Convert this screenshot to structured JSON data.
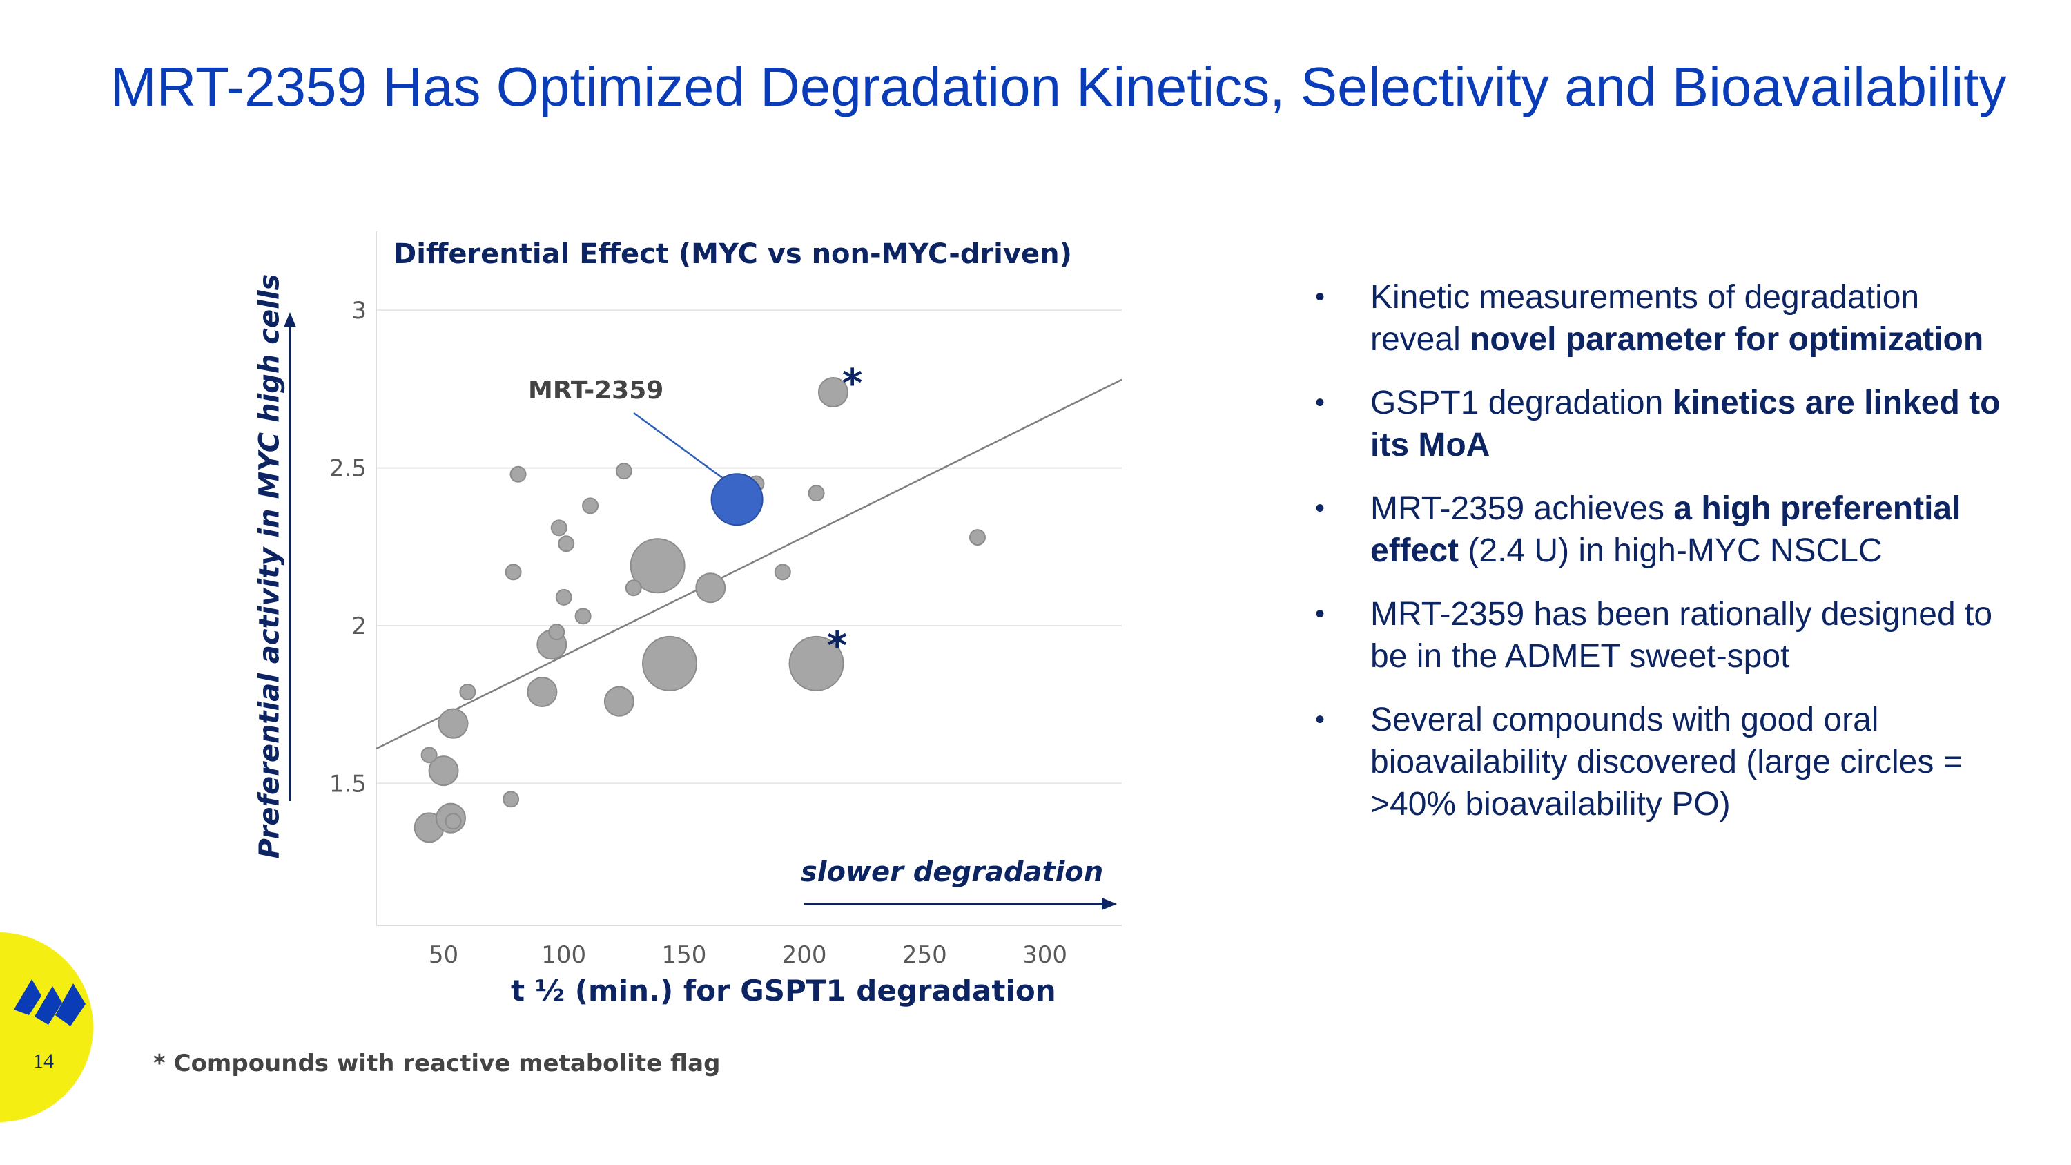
{
  "slide": {
    "title": "MRT-2359 Has Optimized Degradation Kinetics, Selectivity and Bioavailability",
    "page_number": "14",
    "footnote": "* Compounds with reactive metabolite flag",
    "colors": {
      "title": "#0a3cb8",
      "navy": "#0d2463",
      "highlight": "#3a66c8",
      "bubble": "#a6a6a6",
      "logo_bg": "#f5ee12"
    }
  },
  "bullets": [
    {
      "parts": [
        {
          "text": "Kinetic measurements of degradation reveal ",
          "bold": false
        },
        {
          "text": "novel parameter for optimization",
          "bold": true
        }
      ]
    },
    {
      "parts": [
        {
          "text": "GSPT1 degradation ",
          "bold": false
        },
        {
          "text": "kinetics are linked to its MoA",
          "bold": true
        }
      ]
    },
    {
      "parts": [
        {
          "text": "MRT-2359 achieves ",
          "bold": false
        },
        {
          "text": "a high preferential effect",
          "bold": true
        },
        {
          "text": " (2.4 U) in high-MYC NSCLC",
          "bold": false
        }
      ]
    },
    {
      "parts": [
        {
          "text": "MRT-2359 has been rationally designed to be in the ADMET sweet-spot",
          "bold": false
        }
      ]
    },
    {
      "parts": [
        {
          "text": "Several compounds with good oral bioavailability discovered (large circles = >40% bioavailability PO)",
          "bold": false
        }
      ]
    }
  ],
  "chart_data": {
    "type": "scatter",
    "title": "Differential Effect (MYC vs non-MYC-driven)",
    "xlabel": "t ½ (min.) for GSPT1 degradation",
    "ylabel": "Preferential activity in MYC high cells",
    "xlim": [
      22,
      332
    ],
    "ylim": [
      1.05,
      3.25
    ],
    "xticks": [
      50,
      100,
      150,
      200,
      250,
      300
    ],
    "yticks": [
      1.5,
      2,
      2.5,
      3
    ],
    "grid": true,
    "direction_label": "slower degradation",
    "highlight": {
      "name": "MRT-2359",
      "x": 172,
      "y": 2.4,
      "size": "large"
    },
    "flag_marker": "*",
    "trendline": {
      "x1": 22,
      "y1": 1.61,
      "x2": 332,
      "y2": 2.78
    },
    "points": [
      {
        "x": 44,
        "y": 1.59,
        "size": "small"
      },
      {
        "x": 44,
        "y": 1.36,
        "size": "medium"
      },
      {
        "x": 50,
        "y": 1.54,
        "size": "medium"
      },
      {
        "x": 54,
        "y": 1.69,
        "size": "medium"
      },
      {
        "x": 53,
        "y": 1.39,
        "size": "medium"
      },
      {
        "x": 54,
        "y": 1.38,
        "size": "small"
      },
      {
        "x": 60,
        "y": 1.79,
        "size": "small"
      },
      {
        "x": 78,
        "y": 1.45,
        "size": "small"
      },
      {
        "x": 79,
        "y": 2.17,
        "size": "small"
      },
      {
        "x": 81,
        "y": 2.48,
        "size": "small"
      },
      {
        "x": 91,
        "y": 1.79,
        "size": "medium"
      },
      {
        "x": 95,
        "y": 1.94,
        "size": "medium"
      },
      {
        "x": 97,
        "y": 1.98,
        "size": "small"
      },
      {
        "x": 98,
        "y": 2.31,
        "size": "small"
      },
      {
        "x": 100,
        "y": 2.09,
        "size": "small"
      },
      {
        "x": 101,
        "y": 2.26,
        "size": "small"
      },
      {
        "x": 108,
        "y": 2.03,
        "size": "small"
      },
      {
        "x": 111,
        "y": 2.38,
        "size": "small"
      },
      {
        "x": 123,
        "y": 1.76,
        "size": "medium"
      },
      {
        "x": 125,
        "y": 2.49,
        "size": "small"
      },
      {
        "x": 129,
        "y": 2.12,
        "size": "small"
      },
      {
        "x": 139,
        "y": 2.19,
        "size": "large"
      },
      {
        "x": 144,
        "y": 1.88,
        "size": "large"
      },
      {
        "x": 161,
        "y": 2.12,
        "size": "medium"
      },
      {
        "x": 180,
        "y": 2.45,
        "size": "small"
      },
      {
        "x": 191,
        "y": 2.17,
        "size": "small"
      },
      {
        "x": 205,
        "y": 1.88,
        "size": "large",
        "flag": true
      },
      {
        "x": 205,
        "y": 2.42,
        "size": "small"
      },
      {
        "x": 212,
        "y": 2.74,
        "size": "medium",
        "flag": true
      },
      {
        "x": 272,
        "y": 2.28,
        "size": "small"
      }
    ]
  }
}
